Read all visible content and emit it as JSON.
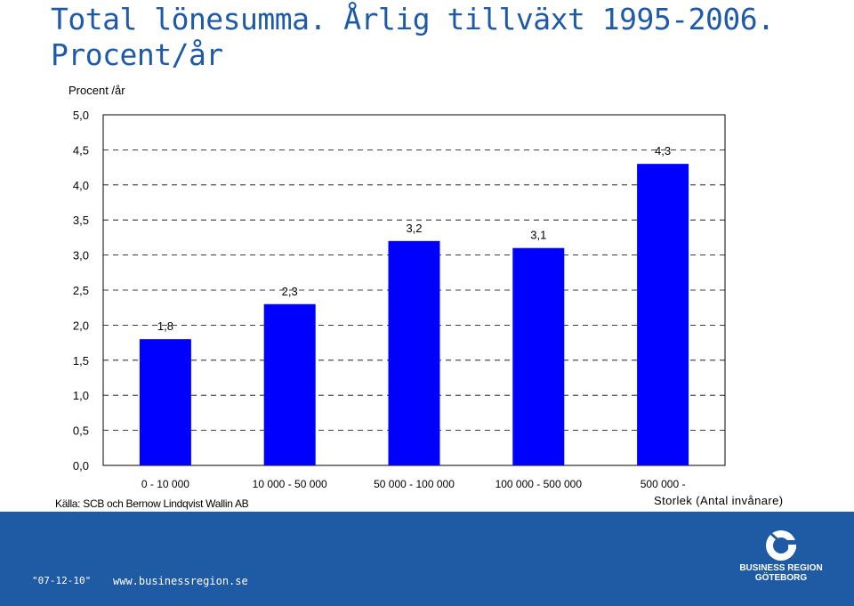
{
  "title": {
    "line1": "Total lönesumma. Årlig tillväxt 1995-2006.",
    "line2": "Procent/år"
  },
  "chart_data": {
    "type": "bar",
    "ylabel": "Procent /år",
    "xlabel": "Storlek (Antal invånare)",
    "categories": [
      "0 - 10 000",
      "10 000 - 50 000",
      "50 000 - 100 000",
      "100 000 - 500 000",
      "500 000 -"
    ],
    "values": [
      1.8,
      2.3,
      3.2,
      3.1,
      4.3
    ],
    "value_labels": [
      "1,8",
      "2,3",
      "3,2",
      "3,1",
      "4,3"
    ],
    "ylim": [
      0,
      5
    ],
    "yticks": [
      "0,0",
      "0,5",
      "1,0",
      "1,5",
      "2,0",
      "2,5",
      "3,0",
      "3,5",
      "4,0",
      "4,5",
      "5,0"
    ],
    "grid": "dashed horizontal",
    "bar_color": "#0000FF"
  },
  "source": "Källa: SCB och Bernow Lindqvist Wallin AB",
  "footer": {
    "date": "\"07-12-10\"",
    "url": "www.businessregion.se",
    "logo_line1": "BUSINESS REGION",
    "logo_line2": "GÖTEBORG",
    "background": "#1F5BA4"
  }
}
